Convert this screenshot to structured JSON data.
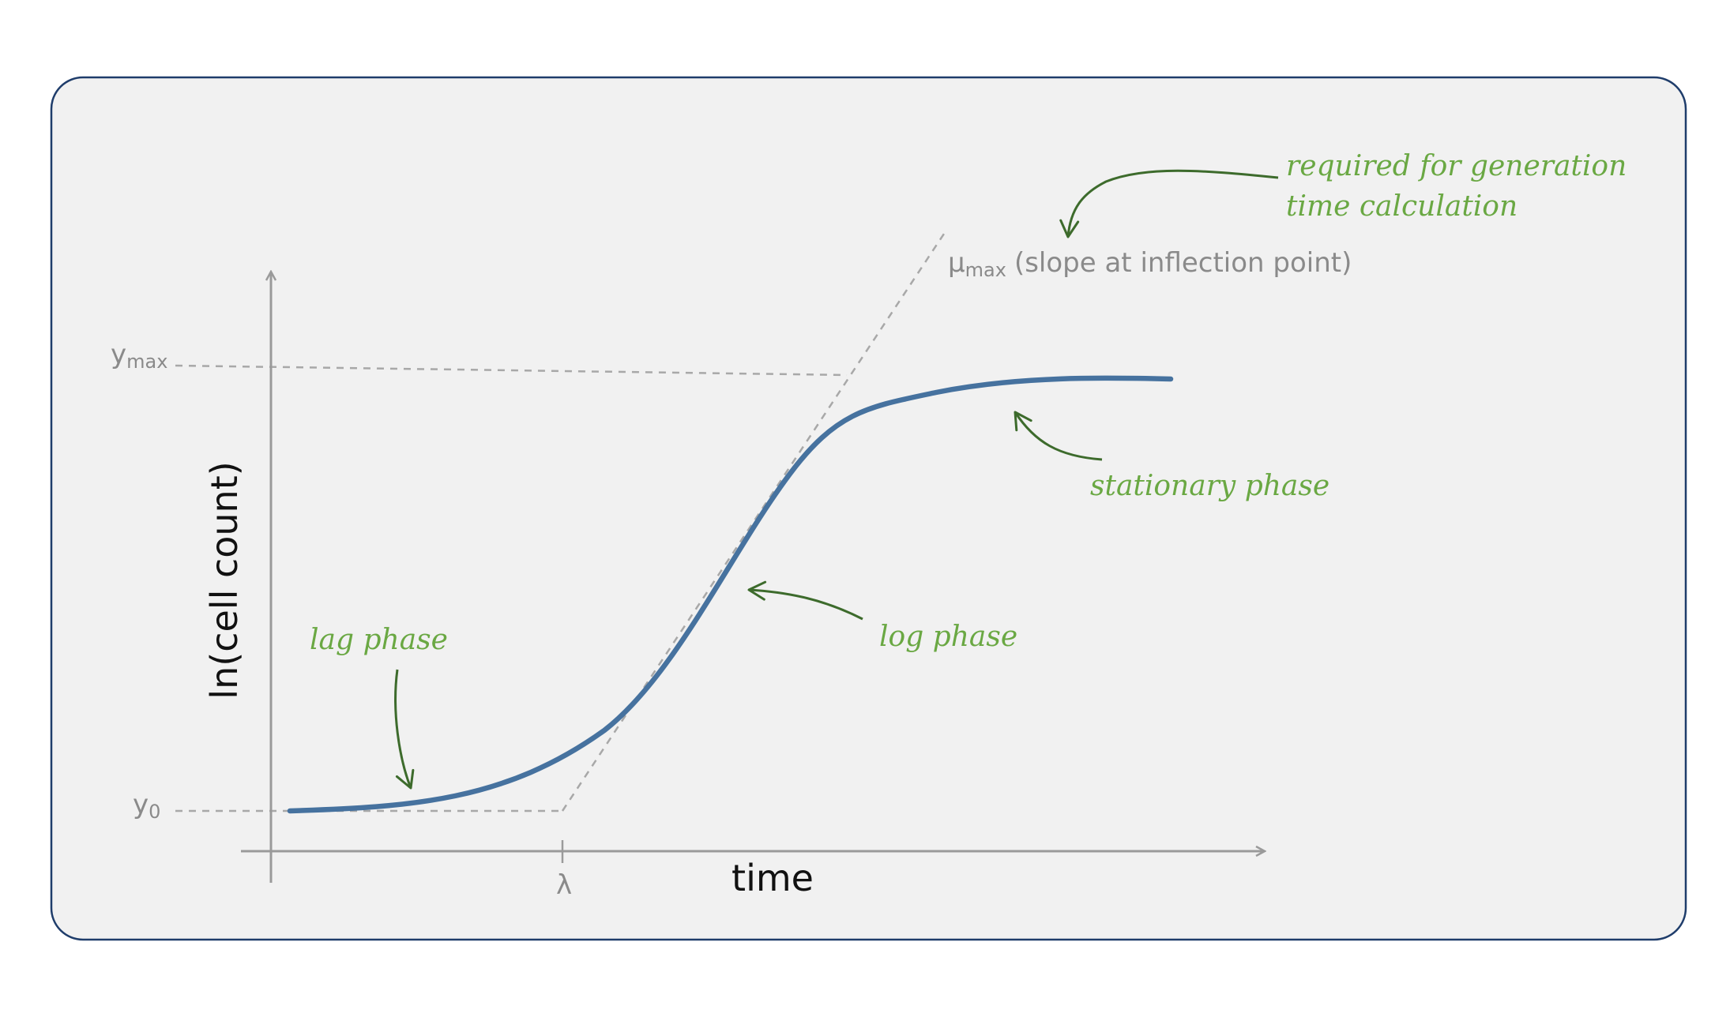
{
  "colors": {
    "panel_fill": "#f1f1f1",
    "panel_border": "#1f3d6b",
    "axis": "#9a9a9a",
    "guide": "#a8a8a8",
    "curve": "#46729f",
    "annotation_text": "#6aa843",
    "annotation_arrow": "#3d6b2c",
    "axis_title": "#111111",
    "guide_label": "#8a8a8a"
  },
  "axes": {
    "x_title": "time",
    "y_title": "ln(cell count)"
  },
  "labels": {
    "ymax_base": "y",
    "ymax_sub": "max",
    "y0_base": "y",
    "y0_sub": "0",
    "lambda": "λ",
    "mumax_base": "μ",
    "mumax_sub": "max",
    "mumax_text": "(slope at inflection point)"
  },
  "annotations": {
    "required_line1": "required for generation",
    "required_line2": "time calculation",
    "stationary": "stationary phase",
    "log": "log phase",
    "lag": "lag phase"
  }
}
